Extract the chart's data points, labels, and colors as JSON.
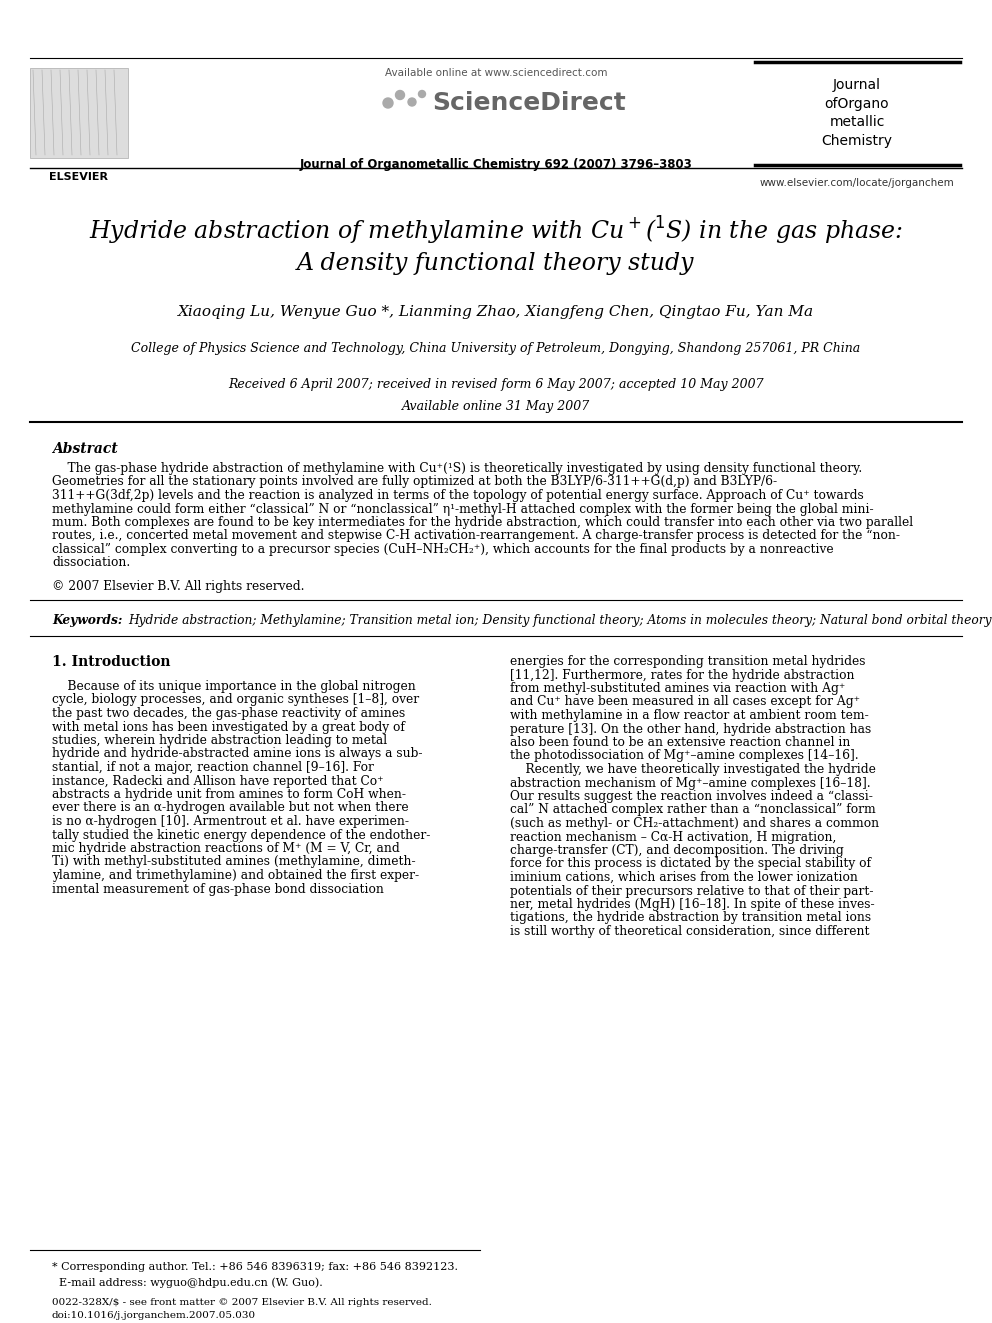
{
  "bg_color": "#ffffff",
  "available_online": "Available online at www.sciencedirect.com",
  "journal_line": "Journal of Organometallic Chemistry 692 (2007) 3796–3803",
  "website": "www.elsevier.com/locate/jorganchem",
  "journal_name": "Journal\nofOrgano\nmetallic\nChemistry",
  "title_line1": "Hydride abstraction of methylamine with Cu$^+$($^1$S) in the gas phase:",
  "title_line2": "A density functional theory study",
  "authors": "Xiaoqing Lu, Wenyue Guo *, Lianming Zhao, Xiangfeng Chen, Qingtao Fu, Yan Ma",
  "affiliation": "College of Physics Science and Technology, China University of Petroleum, Dongying, Shandong 257061, PR China",
  "received": "Received 6 April 2007; received in revised form 6 May 2007; accepted 10 May 2007",
  "available": "Available online 31 May 2007",
  "abstract_title": "Abstract",
  "abstract_text": "    The gas-phase hydride abstraction of methylamine with Cu⁺(¹S) is theoretically investigated by using density functional theory. Geometries for all the stationary points involved are fully optimized at both the B3LYP/6-311++G(d,p) and B3LYP/6-311++G(3df,2p) levels and the reaction is analyzed in terms of the topology of potential energy surface. Approach of Cu⁺ towards methylamine could form either “classical” N or “nonclassical” η¹-methyl-H attached complex with the former being the global minimum. Both complexes are found to be key intermediates for the hydride abstraction, which could transfer into each other via two parallel routes, i.e., concerted metal movement and stepwise C-H activation-rearrangement. A charge-transfer process is detected for the “nonclassical” complex converting to a precursor species (CuH–NH₂CH₂⁺), which accounts for the final products by a nonreactive dissociation.",
  "copyright": "© 2007 Elsevier B.V. All rights reserved.",
  "keywords_label": "Keywords:",
  "keywords": "Hydride abstraction; Methylamine; Transition metal ion; Density functional theory; Atoms in molecules theory; Natural bond orbital theory",
  "section_title": "1. Introduction",
  "intro_col1_lines": [
    "    Because of its unique importance in the global nitrogen",
    "cycle, biology processes, and organic syntheses [1–8], over",
    "the past two decades, the gas-phase reactivity of amines",
    "with metal ions has been investigated by a great body of",
    "studies, wherein hydride abstraction leading to metal",
    "hydride and hydride-abstracted amine ions is always a sub-",
    "stantial, if not a major, reaction channel [9–16]. For",
    "instance, Radecki and Allison have reported that Co⁺",
    "abstracts a hydride unit from amines to form CoH when-",
    "ever there is an α-hydrogen available but not when there",
    "is no α-hydrogen [10]. Armentrout et al. have experimen-",
    "tally studied the kinetic energy dependence of the endother-",
    "mic hydride abstraction reactions of M⁺ (M = V, Cr, and",
    "Ti) with methyl-substituted amines (methylamine, dimeth-",
    "ylamine, and trimethylamine) and obtained the first exper-",
    "imental measurement of gas-phase bond dissociation"
  ],
  "intro_col2_lines": [
    "energies for the corresponding transition metal hydrides",
    "[11,12]. Furthermore, rates for the hydride abstraction",
    "from methyl-substituted amines via reaction with Ag⁺",
    "and Cu⁺ have been measured in all cases except for Ag⁺",
    "with methylamine in a flow reactor at ambient room tem-",
    "perature [13]. On the other hand, hydride abstraction has",
    "also been found to be an extensive reaction channel in",
    "the photodissociation of Mg⁺–amine complexes [14–16].",
    "    Recently, we have theoretically investigated the hydride",
    "abstraction mechanism of Mg⁺–amine complexes [16–18].",
    "Our results suggest the reaction involves indeed a “classi-",
    "cal” N attached complex rather than a “nonclassical” form",
    "(such as methyl- or CH₂-attachment) and shares a common",
    "reaction mechanism – Cα-H activation, H migration,",
    "charge-transfer (CT), and decomposition. The driving",
    "force for this process is dictated by the special stability of",
    "iminium cations, which arises from the lower ionization",
    "potentials of their precursors relative to that of their part-",
    "ner, metal hydrides (MgH) [16–18]. In spite of these inves-",
    "tigations, the hydride abstraction by transition metal ions",
    "is still worthy of theoretical consideration, since different"
  ],
  "footnote_line1": "* Corresponding author. Tel.: +86 546 8396319; fax: +86 546 8392123.",
  "footnote_line2": "  E-mail address: wyguo@hdpu.edu.cn (W. Guo).",
  "footer_line1": "0022-328X/$ - see front matter © 2007 Elsevier B.V. All rights reserved.",
  "footer_line2": "doi:10.1016/j.jorganchem.2007.05.030"
}
